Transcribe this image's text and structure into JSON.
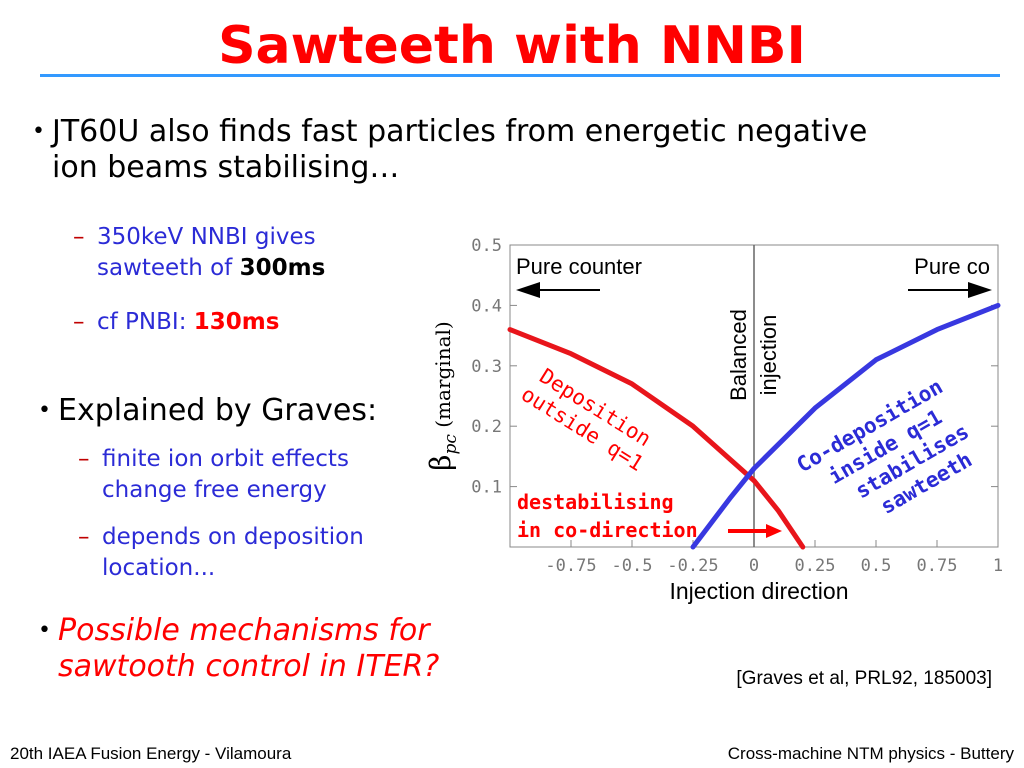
{
  "title": "Sawteeth with NNBI",
  "bullets": {
    "b1": {
      "line1": "JT60U also finds fast particles from energetic negative",
      "line2": "ion beams stabilising…"
    },
    "b1_sub1": {
      "text_line1": "350keV NNBI gives",
      "text_line2": "sawteeth of ",
      "value": "300ms"
    },
    "b1_sub2": {
      "text": "cf PNBI: ",
      "value": "130ms"
    },
    "b2": {
      "text": "Explained by Graves:"
    },
    "b2_sub1": {
      "line1": "finite ion orbit effects",
      "line2": "change free energy"
    },
    "b2_sub2": {
      "line1": "depends on deposition",
      "line2": "location..."
    },
    "b3": {
      "line1": "Possible mechanisms for",
      "line2": "sawtooth control in ITER?"
    }
  },
  "bullet_glyph": "•",
  "dash_glyph": "–",
  "citation": "[Graves et al, PRL92, 185003]",
  "footer": {
    "left": "20th IAEA Fusion Energy - Vilamoura",
    "right": "Cross-machine NTM physics - Buttery"
  },
  "chart_data": {
    "type": "line",
    "xlabel": "Injection direction",
    "ylabel_symbol": "β",
    "ylabel_sub": "pc",
    "ylabel_suffix": "(marginal)",
    "xlim": [
      -1,
      1
    ],
    "ylim": [
      0,
      0.5
    ],
    "x_ticks": [
      "-0.75",
      "-0.5",
      "-0.25",
      "0",
      "0.25",
      "0.5",
      "0.75",
      "1"
    ],
    "y_ticks": [
      "0.1",
      "0.2",
      "0.3",
      "0.4",
      "0.5"
    ],
    "annotations": {
      "pure_counter": "Pure counter",
      "pure_co": "Pure co",
      "balanced_line1": "Balanced",
      "balanced_line2": "injection",
      "deposition_outside_line1": "Deposition",
      "deposition_outside_line2": "outside q=1",
      "destabilising_line1": "destabilising",
      "destabilising_line2": "in co-direction",
      "co_dep_line1": "Co-deposition",
      "co_dep_line2": "inside q=1",
      "co_dep_line3": "stabilises",
      "co_dep_line4": "sawteeth"
    },
    "series": [
      {
        "color": "#e8151b",
        "x": [
          -1.0,
          -0.75,
          -0.5,
          -0.25,
          0.0,
          0.1,
          0.2
        ],
        "y": [
          0.36,
          0.32,
          0.27,
          0.2,
          0.11,
          0.06,
          0.0
        ]
      },
      {
        "color": "#3838e0",
        "x": [
          -0.25,
          -0.1,
          0.0,
          0.25,
          0.5,
          0.75,
          1.0
        ],
        "y": [
          0.0,
          0.08,
          0.13,
          0.23,
          0.31,
          0.36,
          0.4
        ]
      }
    ],
    "colors": {
      "red": "#ff0000",
      "blue": "#2b2bd6"
    }
  }
}
